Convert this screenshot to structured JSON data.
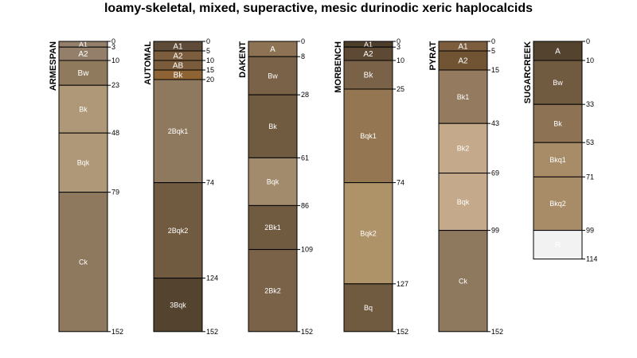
{
  "title": "loamy-skeletal, mixed, superactive, mesic durinodic xeric haplocalcids",
  "profiles": [
    {
      "name": "ARMESPAN",
      "horizons": [
        {
          "name": "A1",
          "top": 0,
          "bottom": 3,
          "color": "#94806a"
        },
        {
          "name": "A2",
          "top": 3,
          "bottom": 10,
          "color": "#94806a"
        },
        {
          "name": "Bw",
          "top": 10,
          "bottom": 23,
          "color": "#907a5e"
        },
        {
          "name": "Bk",
          "top": 23,
          "bottom": 48,
          "color": "#ae9878"
        },
        {
          "name": "Bqk",
          "top": 48,
          "bottom": 79,
          "color": "#ae9878"
        },
        {
          "name": "Ck",
          "top": 79,
          "bottom": 152,
          "color": "#8e785e"
        }
      ]
    },
    {
      "name": "AUTOMAL",
      "horizons": [
        {
          "name": "A1",
          "top": 0,
          "bottom": 5,
          "color": "#5e4c38"
        },
        {
          "name": "A2",
          "top": 5,
          "bottom": 10,
          "color": "#7c5e3e"
        },
        {
          "name": "AB",
          "top": 10,
          "bottom": 15,
          "color": "#7a5c3c"
        },
        {
          "name": "Bk",
          "top": 15,
          "bottom": 20,
          "color": "#8e6434"
        },
        {
          "name": "2Bqk1",
          "top": 20,
          "bottom": 74,
          "color": "#8e785e"
        },
        {
          "name": "2Bqk2",
          "top": 74,
          "bottom": 124,
          "color": "#705a40"
        },
        {
          "name": "3Bqk",
          "top": 124,
          "bottom": 152,
          "color": "#54432e"
        }
      ]
    },
    {
      "name": "DAKENT",
      "horizons": [
        {
          "name": "A",
          "top": 0,
          "bottom": 8,
          "color": "#8e7254"
        },
        {
          "name": "Bw",
          "top": 8,
          "bottom": 28,
          "color": "#7a6248"
        },
        {
          "name": "Bk",
          "top": 28,
          "bottom": 61,
          "color": "#705a40"
        },
        {
          "name": "Bqk",
          "top": 61,
          "bottom": 86,
          "color": "#a28a6c"
        },
        {
          "name": "2Bk1",
          "top": 86,
          "bottom": 109,
          "color": "#705a40"
        },
        {
          "name": "2Bk2",
          "top": 109,
          "bottom": 152,
          "color": "#7a6248"
        }
      ]
    },
    {
      "name": "MORBENCH",
      "horizons": [
        {
          "name": "A1",
          "top": 0,
          "bottom": 3,
          "color": "#4e3e2c"
        },
        {
          "name": "A2",
          "top": 3,
          "bottom": 10,
          "color": "#5e4a34"
        },
        {
          "name": "Bk",
          "top": 10,
          "bottom": 25,
          "color": "#7a6248"
        },
        {
          "name": "Bqk1",
          "top": 25,
          "bottom": 74,
          "color": "#947652"
        },
        {
          "name": "Bqk2",
          "top": 74,
          "bottom": 127,
          "color": "#ae9268"
        },
        {
          "name": "Bq",
          "top": 127,
          "bottom": 152,
          "color": "#705a40"
        }
      ]
    },
    {
      "name": "PYRAT",
      "horizons": [
        {
          "name": "A1",
          "top": 0,
          "bottom": 5,
          "color": "#7c5e3e"
        },
        {
          "name": "A2",
          "top": 5,
          "bottom": 15,
          "color": "#705434"
        },
        {
          "name": "Bk1",
          "top": 15,
          "bottom": 43,
          "color": "#947a5e"
        },
        {
          "name": "Bk2",
          "top": 43,
          "bottom": 69,
          "color": "#c4aa8a"
        },
        {
          "name": "Bqk",
          "top": 69,
          "bottom": 99,
          "color": "#c4aa8a"
        },
        {
          "name": "Ck",
          "top": 99,
          "bottom": 152,
          "color": "#8e785e"
        }
      ]
    },
    {
      "name": "SUGARCREEK",
      "horizons": [
        {
          "name": "A",
          "top": 0,
          "bottom": 10,
          "color": "#54432e"
        },
        {
          "name": "Bw",
          "top": 10,
          "bottom": 33,
          "color": "#705a40"
        },
        {
          "name": "Bk",
          "top": 33,
          "bottom": 53,
          "color": "#8e7254"
        },
        {
          "name": "Bkq1",
          "top": 53,
          "bottom": 71,
          "color": "#a88c68"
        },
        {
          "name": "Bkq2",
          "top": 71,
          "bottom": 99,
          "color": "#a88c68"
        },
        {
          "name": "R",
          "top": 99,
          "bottom": 114,
          "color": "#f2f2f2"
        }
      ]
    }
  ]
}
